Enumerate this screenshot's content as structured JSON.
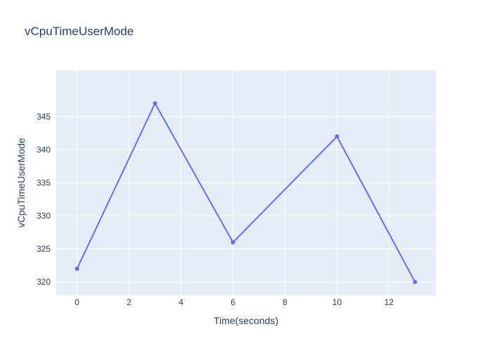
{
  "chart_data": {
    "type": "line",
    "title": "vCpuTimeUserMode",
    "xlabel": "Time(seconds)",
    "ylabel": "vCpuTimeUserMode",
    "x": [
      0,
      3,
      6,
      10,
      13
    ],
    "series": [
      {
        "values": [
          322,
          347,
          326,
          342,
          320
        ]
      }
    ],
    "xlim": [
      -0.8,
      13.8
    ],
    "ylim": [
      318,
      352
    ],
    "xticks": [
      0,
      2,
      4,
      6,
      8,
      10,
      12
    ],
    "yticks": [
      320,
      325,
      330,
      335,
      340,
      345
    ],
    "grid": true,
    "legend": "none",
    "colors": {
      "line": "#636efa",
      "plot_bg": "#e5ecf6",
      "grid": "#ffffff",
      "text": "#2a3f5f",
      "tick_text": "#2a3f5f"
    }
  }
}
